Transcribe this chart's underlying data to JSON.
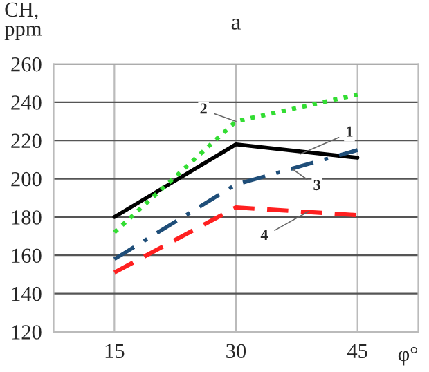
{
  "chart_data": {
    "type": "line",
    "title": "a",
    "ylabel": "CH,\nppm",
    "xlabel": "φ°",
    "x": [
      15,
      30,
      45
    ],
    "xlim": [
      7.5,
      52.5
    ],
    "xticks": [
      15,
      30,
      45
    ],
    "ylim": [
      120,
      260
    ],
    "yticks": [
      120,
      140,
      160,
      180,
      200,
      220,
      240,
      260
    ],
    "grid": true,
    "legend": false,
    "series": [
      {
        "name": "1",
        "color": "#000000",
        "line_style": "solid",
        "values": [
          180,
          218,
          211
        ]
      },
      {
        "name": "2",
        "color": "#33dd33",
        "line_style": "dotted",
        "values": [
          172,
          230,
          244
        ]
      },
      {
        "name": "3",
        "color": "#1f4e79",
        "line_style": "dashdot",
        "values": [
          158,
          197,
          215
        ]
      },
      {
        "name": "4",
        "color": "#ff2020",
        "line_style": "dashed",
        "values": [
          151,
          185,
          181
        ]
      }
    ]
  }
}
